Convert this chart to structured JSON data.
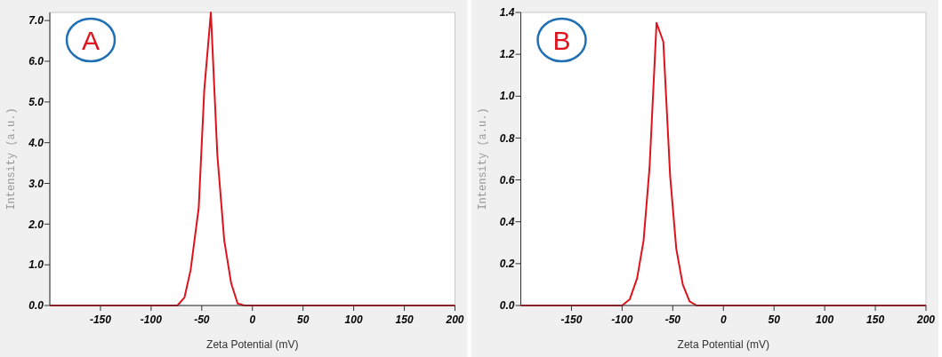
{
  "chart_data": [
    {
      "type": "line",
      "xlabel": "Zeta Potential (mV)",
      "ylabel": "Intensity (a.u.)",
      "annotations": [
        "A"
      ],
      "xlim": [
        -200,
        200
      ],
      "xticks": [
        -150,
        -100,
        -50,
        0,
        50,
        100,
        150,
        200
      ],
      "ylim": [
        0,
        7.2
      ],
      "yticks": [
        {
          "value": 0,
          "label": "0.0"
        },
        {
          "value": 1,
          "label": "1.0"
        },
        {
          "value": 2,
          "label": "2.0"
        },
        {
          "value": 3,
          "label": "3.0"
        },
        {
          "value": 4,
          "label": "4.0"
        },
        {
          "value": 5,
          "label": "5.0"
        },
        {
          "value": 6,
          "label": "6.0"
        },
        {
          "value": 7,
          "label": "7.0"
        }
      ],
      "grid": false,
      "marker": "none",
      "line_style": "solid",
      "series": [
        {
          "color": "#e0121b",
          "x": [
            -200,
            -74,
            -67,
            -61,
            -53,
            -47.5,
            -41,
            -34.6,
            -27.8,
            -21,
            -14.6,
            -8,
            200
          ],
          "values": [
            0,
            0,
            0.2,
            0.87,
            2.4,
            5.3,
            7.2,
            3.7,
            1.6,
            0.55,
            0.05,
            0,
            0
          ]
        }
      ]
    },
    {
      "type": "line",
      "xlabel": "Zeta Potential (mV)",
      "ylabel": "Intensity (a.u.)",
      "annotations": [
        "B"
      ],
      "xlim": [
        -200,
        200
      ],
      "xticks": [
        -150,
        -100,
        -50,
        0,
        50,
        100,
        150,
        200
      ],
      "ylim": [
        0,
        1.4
      ],
      "yticks": [
        {
          "value": 0,
          "label": "0.0"
        },
        0.2,
        0.4,
        0.6,
        0.8,
        {
          "value": 1,
          "label": "1.0"
        },
        1.2,
        1.4
      ],
      "grid": false,
      "marker": "none",
      "line_style": "solid",
      "series": [
        {
          "color": "#e0121b",
          "x": [
            -200,
            -100,
            -92.4,
            -85.2,
            -78.8,
            -72.9,
            -66,
            -59.3,
            -52.6,
            -46.5,
            -40.1,
            -33.4,
            -26.4,
            200
          ],
          "values": [
            0,
            0,
            0.03,
            0.13,
            0.31,
            0.66,
            1.35,
            1.26,
            0.62,
            0.27,
            0.1,
            0.02,
            0,
            0
          ]
        }
      ]
    }
  ]
}
